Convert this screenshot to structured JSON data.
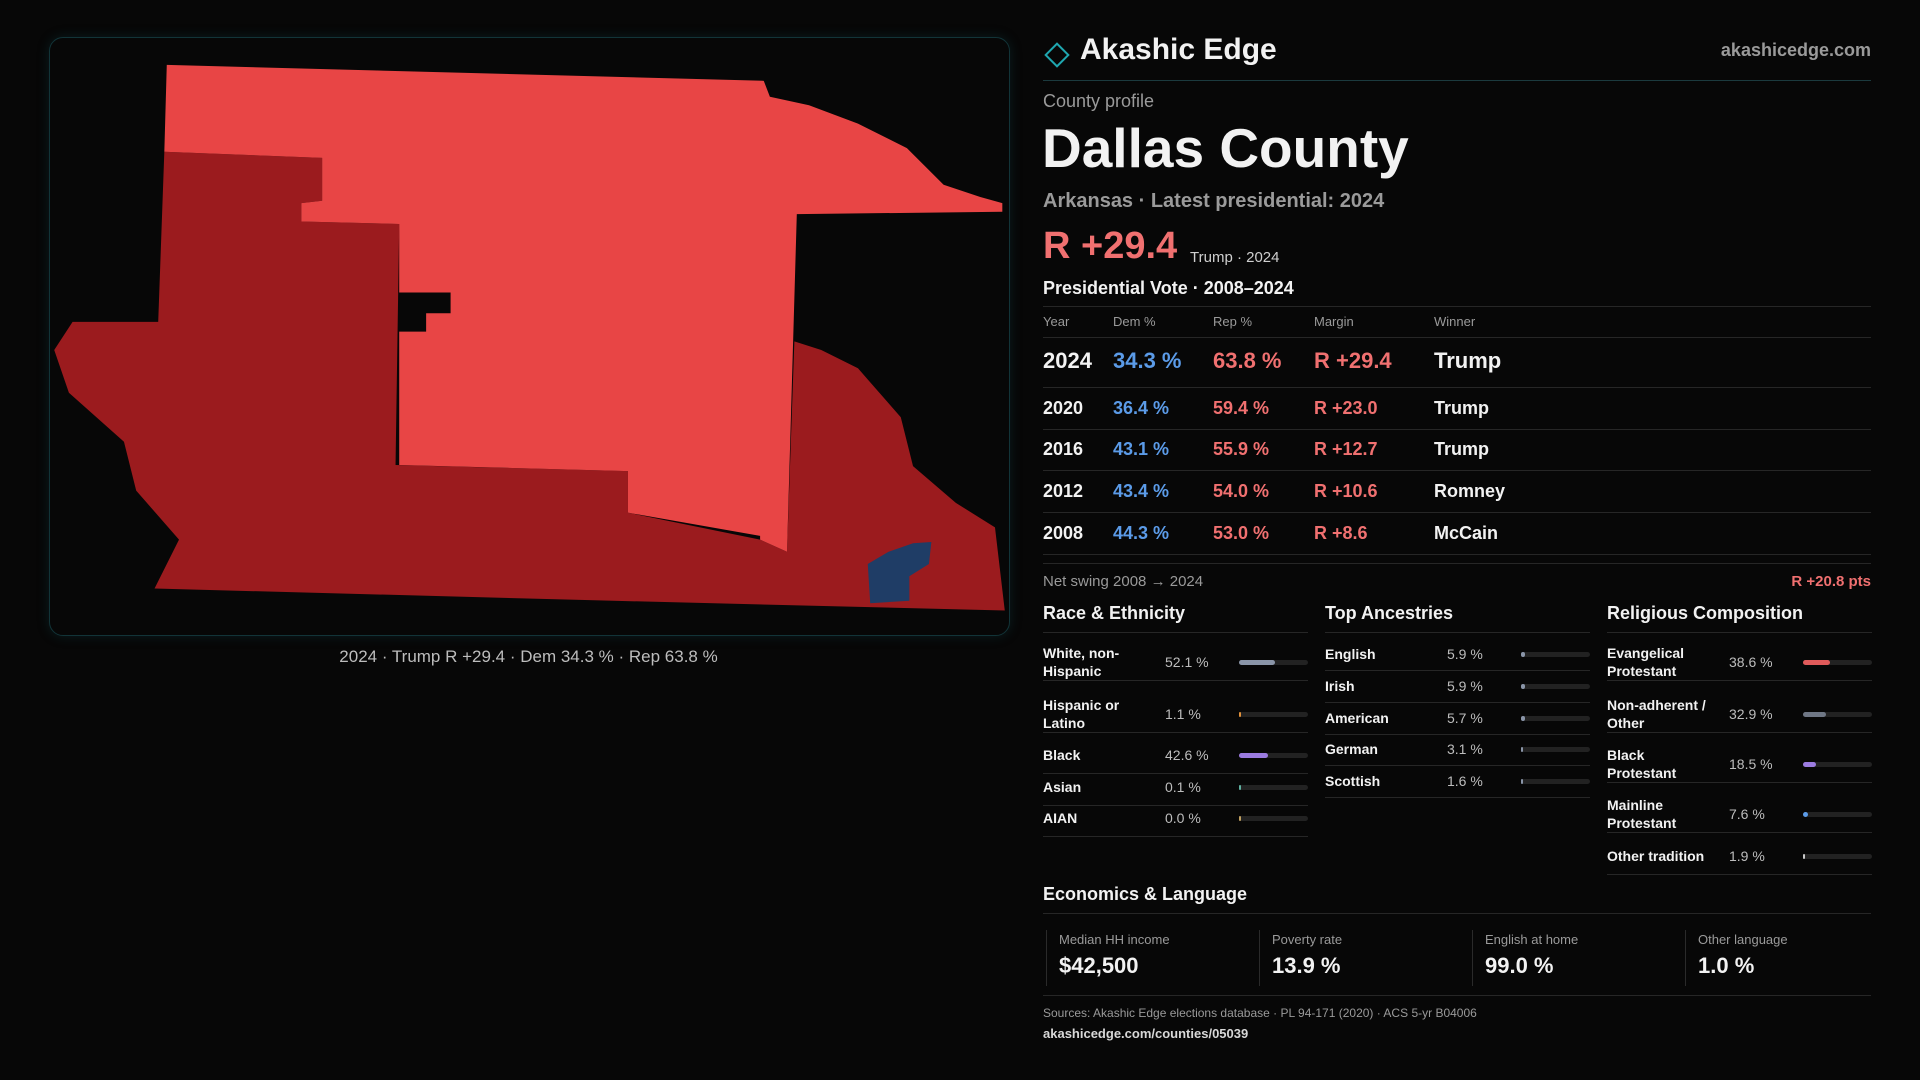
{
  "header": {
    "brand": "Akashic Edge",
    "site": "akashicedge.com"
  },
  "map_caption": "2024 · Trump R +29.4 · Dem 34.3 % · Rep 63.8 %",
  "profile": {
    "kicker": "County profile",
    "title": "Dallas County",
    "subtitle": "Arkansas · Latest presidential: 2024",
    "margin": "R +29.4",
    "margin_note": "Trump · 2024"
  },
  "votes": {
    "title": "Presidential Vote · 2008–2024",
    "columns": [
      "Year",
      "Dem %",
      "Rep %",
      "Margin",
      "Winner"
    ],
    "rows": [
      [
        "2024",
        "34.3 %",
        "63.8 %",
        "R +29.4",
        "Trump"
      ],
      [
        "2020",
        "36.4 %",
        "59.4 %",
        "R +23.0",
        "Trump"
      ],
      [
        "2016",
        "43.1 %",
        "55.9 %",
        "R +12.7",
        "Trump"
      ],
      [
        "2012",
        "43.4 %",
        "54.0 %",
        "R +10.6",
        "Romney"
      ],
      [
        "2008",
        "44.3 %",
        "53.0 %",
        "R +8.6",
        "McCain"
      ]
    ],
    "swing_label": "Net swing 2008 → 2024",
    "swing_value": "R +20.8 pts"
  },
  "demographics": [
    {
      "title": "Race & Ethnicity",
      "rows": [
        {
          "label": "White, non-Hispanic",
          "value": 52.1,
          "value_label": "52.1 %",
          "color": "#8a95a8"
        },
        {
          "label": "Hispanic or Latino",
          "value": 1.1,
          "value_label": "1.1 %",
          "color": "#e0903a"
        },
        {
          "label": "Black",
          "value": 42.6,
          "value_label": "42.6 %",
          "color": "#9b7be0"
        },
        {
          "label": "Asian",
          "value": 0.1,
          "value_label": "0.1 %",
          "color": "#5fb0a0"
        },
        {
          "label": "AIAN",
          "value": 0.0,
          "value_label": "0.0 %",
          "color": "#c0a060"
        }
      ]
    },
    {
      "title": "Top Ancestries",
      "rows": [
        {
          "label": "English",
          "value": 5.9,
          "value_label": "5.9 %",
          "color": "#8a95a8"
        },
        {
          "label": "Irish",
          "value": 5.9,
          "value_label": "5.9 %",
          "color": "#8a95a8"
        },
        {
          "label": "American",
          "value": 5.7,
          "value_label": "5.7 %",
          "color": "#8a95a8"
        },
        {
          "label": "German",
          "value": 3.1,
          "value_label": "3.1 %",
          "color": "#8a95a8"
        },
        {
          "label": "Scottish",
          "value": 1.6,
          "value_label": "1.6 %",
          "color": "#8a95a8"
        }
      ]
    },
    {
      "title": "Religious Composition",
      "rows": [
        {
          "label": "Evangelical Protestant",
          "value": 38.6,
          "value_label": "38.6 %",
          "color": "#e05a5a"
        },
        {
          "label": "Non-adherent / Other",
          "value": 32.9,
          "value_label": "32.9 %",
          "color": "#6f7785"
        },
        {
          "label": "Black Protestant",
          "value": 18.5,
          "value_label": "18.5 %",
          "color": "#9b7be0"
        },
        {
          "label": "Mainline Protestant",
          "value": 7.6,
          "value_label": "7.6 %",
          "color": "#5b9be8"
        },
        {
          "label": "Other tradition",
          "value": 1.9,
          "value_label": "1.9 %",
          "color": "#c8c8c8"
        }
      ]
    }
  ],
  "economics": {
    "title": "Economics & Language",
    "cards": [
      {
        "label": "Median HH income",
        "value": "$42,500"
      },
      {
        "label": "Poverty rate",
        "value": "13.9 %"
      },
      {
        "label": "English at home",
        "value": "99.0 %"
      },
      {
        "label": "Other language",
        "value": "1.0 %"
      }
    ]
  },
  "sources": {
    "text": "Sources: Akashic Edge elections database · PL 94-171 (2020) · ACS 5-yr B04006",
    "url": "akashicedge.com/counties/05039"
  }
}
